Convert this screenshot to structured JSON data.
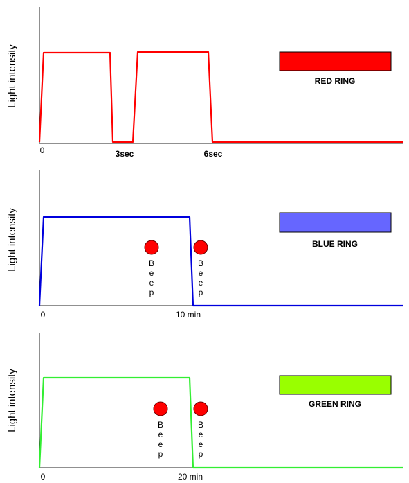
{
  "panels": [
    {
      "id": "red",
      "ylabel": "Light intensity",
      "color": "#ff0000",
      "legend_color": "#ff0000",
      "legend_label": "RED RING",
      "ticks": [
        {
          "label": "0",
          "bold": false
        },
        {
          "label": "3sec",
          "bold": true
        },
        {
          "label": "6sec",
          "bold": true
        }
      ],
      "beeps": []
    },
    {
      "id": "blue",
      "ylabel": "Light intensity",
      "color": "#0000dd",
      "legend_color": "#6666ff",
      "legend_label": "BLUE RING",
      "ticks": [
        {
          "label": "0",
          "bold": false
        },
        {
          "label": "10 min",
          "bold": false
        }
      ],
      "beeps": [
        {
          "letters": [
            "B",
            "e",
            "e",
            "p"
          ]
        },
        {
          "letters": [
            "B",
            "e",
            "e",
            "p"
          ]
        }
      ]
    },
    {
      "id": "green",
      "ylabel": "Light intensity",
      "color": "#33ee33",
      "legend_color": "#99ff00",
      "legend_label": "GREEN RING",
      "ticks": [
        {
          "label": "0",
          "bold": false
        },
        {
          "label": "20 min",
          "bold": false
        }
      ],
      "beeps": [
        {
          "letters": [
            "B",
            "e",
            "e",
            "p"
          ]
        },
        {
          "letters": [
            "B",
            "e",
            "e",
            "p"
          ]
        }
      ]
    }
  ],
  "beep_dot_color": "#ff0000"
}
